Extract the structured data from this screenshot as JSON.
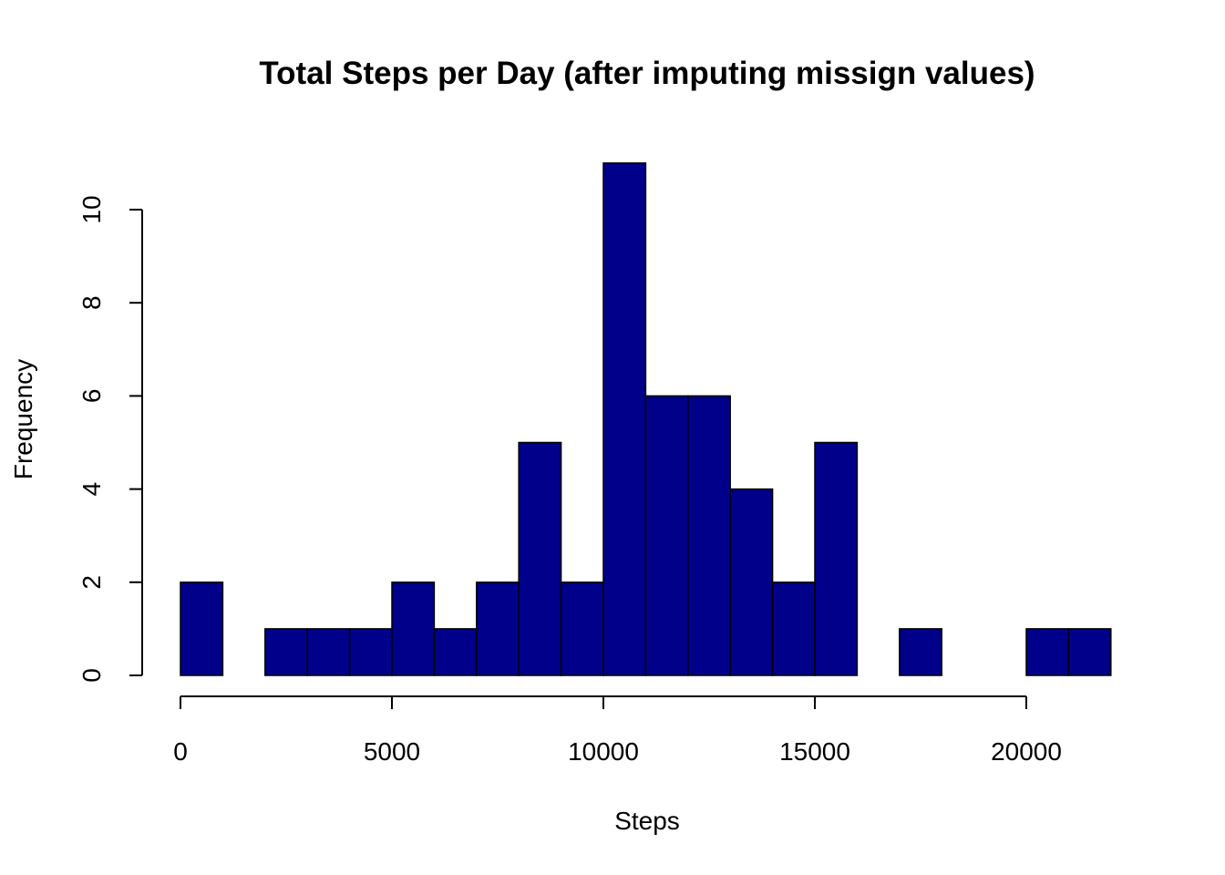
{
  "chart_data": {
    "type": "bar",
    "title": "Total Steps per Day (after imputing missign values)",
    "xlabel": "Steps",
    "ylabel": "Frequency",
    "bin_width": 1000,
    "bins": [
      [
        0,
        1000
      ],
      [
        1000,
        2000
      ],
      [
        2000,
        3000
      ],
      [
        3000,
        4000
      ],
      [
        4000,
        5000
      ],
      [
        5000,
        6000
      ],
      [
        6000,
        7000
      ],
      [
        7000,
        8000
      ],
      [
        8000,
        9000
      ],
      [
        9000,
        10000
      ],
      [
        10000,
        11000
      ],
      [
        11000,
        12000
      ],
      [
        12000,
        13000
      ],
      [
        13000,
        14000
      ],
      [
        14000,
        15000
      ],
      [
        15000,
        16000
      ],
      [
        16000,
        17000
      ],
      [
        17000,
        18000
      ],
      [
        18000,
        19000
      ],
      [
        19000,
        20000
      ],
      [
        20000,
        21000
      ],
      [
        21000,
        22000
      ]
    ],
    "values": [
      2,
      0,
      1,
      1,
      1,
      2,
      1,
      2,
      5,
      2,
      11,
      6,
      6,
      4,
      2,
      5,
      0,
      1,
      0,
      0,
      1,
      1
    ],
    "xlim": [
      0,
      20000
    ],
    "ylim": [
      0,
      10
    ],
    "x_ticks": [
      0,
      5000,
      10000,
      15000,
      20000
    ],
    "y_ticks": [
      0,
      2,
      4,
      6,
      8,
      10
    ],
    "bar_color": "#00008b",
    "grid": false,
    "legend": "none"
  }
}
